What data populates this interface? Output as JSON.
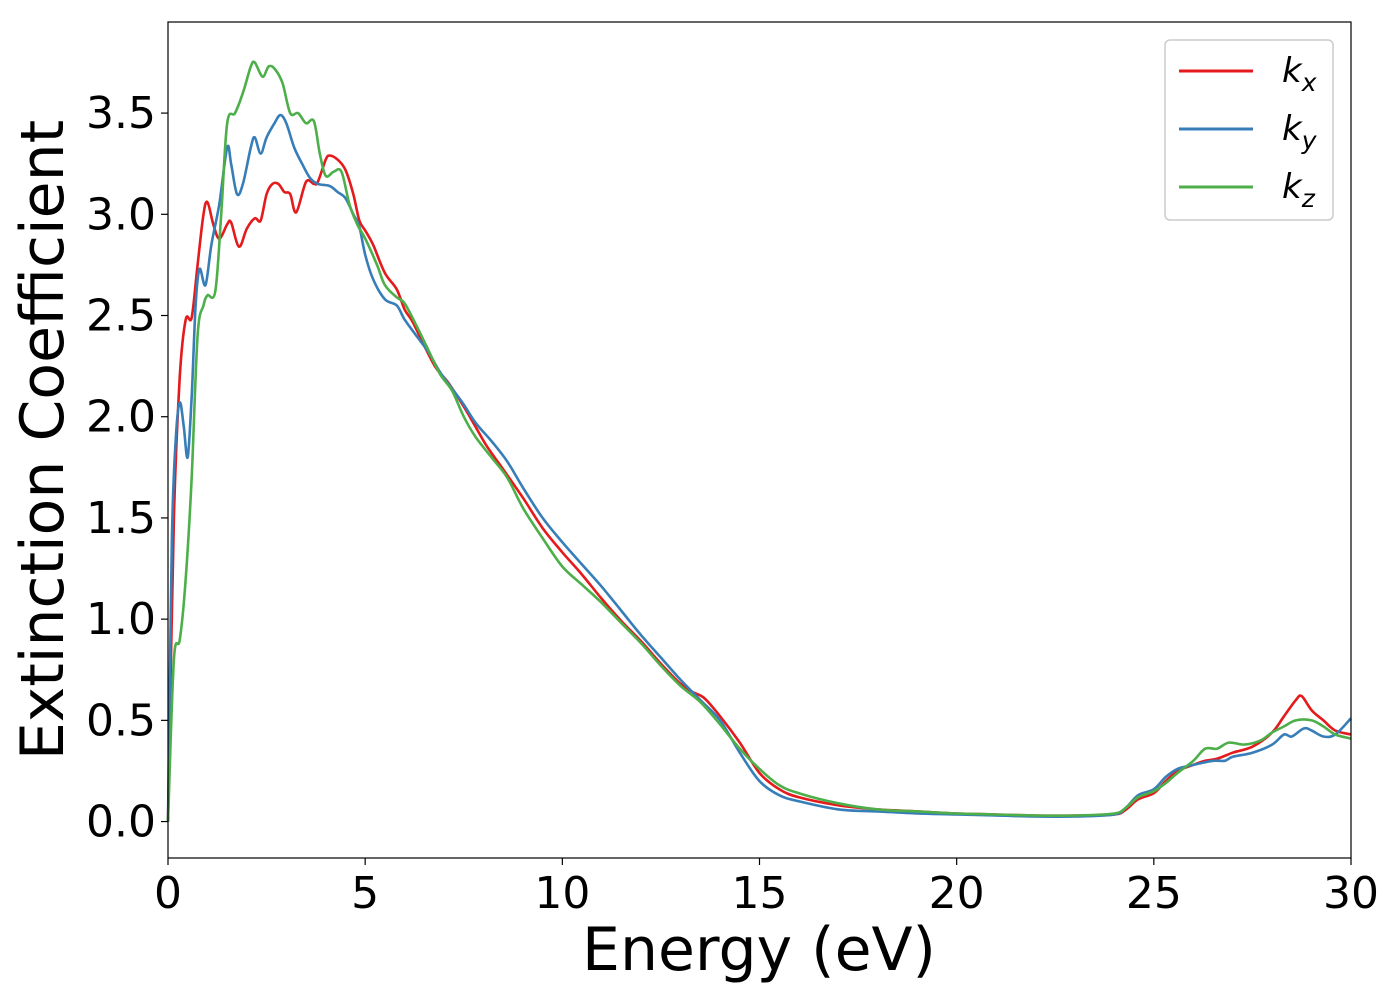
{
  "chart_data": {
    "type": "line",
    "xlabel": "Energy (eV)",
    "ylabel": "Extinction Coefficient",
    "xlim": [
      0,
      30
    ],
    "ylim": [
      -0.18,
      3.95
    ],
    "xticks": [
      0,
      5,
      10,
      15,
      20,
      25,
      30
    ],
    "xtick_labels": [
      "0",
      "5",
      "10",
      "15",
      "20",
      "25",
      "30"
    ],
    "yticks": [
      0.0,
      0.5,
      1.0,
      1.5,
      2.0,
      2.5,
      3.0,
      3.5
    ],
    "ytick_labels": [
      "0.0",
      "0.5",
      "1.0",
      "1.5",
      "2.0",
      "2.5",
      "3.0",
      "3.5"
    ],
    "grid": false,
    "legend_position": "top-right",
    "series": [
      {
        "name": "k",
        "subscript": "x",
        "color": "#e41a1c",
        "points": [
          [
            0,
            0.0
          ],
          [
            0.15,
            1.5
          ],
          [
            0.3,
            2.2
          ],
          [
            0.45,
            2.48
          ],
          [
            0.6,
            2.49
          ],
          [
            0.75,
            2.75
          ],
          [
            0.9,
            3.0
          ],
          [
            1.0,
            3.06
          ],
          [
            1.15,
            2.95
          ],
          [
            1.3,
            2.88
          ],
          [
            1.5,
            2.95
          ],
          [
            1.6,
            2.96
          ],
          [
            1.8,
            2.84
          ],
          [
            2.0,
            2.93
          ],
          [
            2.2,
            2.98
          ],
          [
            2.35,
            2.97
          ],
          [
            2.5,
            3.1
          ],
          [
            2.65,
            3.15
          ],
          [
            2.8,
            3.15
          ],
          [
            2.95,
            3.11
          ],
          [
            3.1,
            3.1
          ],
          [
            3.25,
            3.01
          ],
          [
            3.5,
            3.16
          ],
          [
            3.7,
            3.15
          ],
          [
            3.8,
            3.16
          ],
          [
            4.0,
            3.27
          ],
          [
            4.1,
            3.29
          ],
          [
            4.3,
            3.27
          ],
          [
            4.5,
            3.22
          ],
          [
            4.7,
            3.1
          ],
          [
            4.85,
            2.97
          ],
          [
            5.0,
            2.92
          ],
          [
            5.2,
            2.85
          ],
          [
            5.5,
            2.71
          ],
          [
            5.8,
            2.63
          ],
          [
            6.0,
            2.53
          ],
          [
            6.2,
            2.47
          ],
          [
            6.5,
            2.35
          ],
          [
            6.8,
            2.24
          ],
          [
            7.1,
            2.17
          ],
          [
            7.5,
            2.05
          ],
          [
            7.8,
            1.95
          ],
          [
            8.1,
            1.85
          ],
          [
            8.5,
            1.74
          ],
          [
            9.0,
            1.6
          ],
          [
            9.5,
            1.45
          ],
          [
            10.0,
            1.33
          ],
          [
            10.5,
            1.22
          ],
          [
            11.0,
            1.1
          ],
          [
            11.5,
            0.99
          ],
          [
            12.0,
            0.89
          ],
          [
            12.5,
            0.78
          ],
          [
            13.0,
            0.68
          ],
          [
            13.3,
            0.64
          ],
          [
            13.6,
            0.61
          ],
          [
            14.0,
            0.52
          ],
          [
            14.5,
            0.39
          ],
          [
            15.0,
            0.24
          ],
          [
            15.5,
            0.16
          ],
          [
            16.0,
            0.12
          ],
          [
            17.0,
            0.08
          ],
          [
            18.0,
            0.06
          ],
          [
            19.0,
            0.05
          ],
          [
            20.0,
            0.04
          ],
          [
            21.0,
            0.035
          ],
          [
            22.0,
            0.03
          ],
          [
            23.0,
            0.03
          ],
          [
            24.0,
            0.035
          ],
          [
            24.3,
            0.06
          ],
          [
            24.6,
            0.11
          ],
          [
            25.0,
            0.14
          ],
          [
            25.3,
            0.2
          ],
          [
            25.6,
            0.25
          ],
          [
            26.0,
            0.28
          ],
          [
            26.3,
            0.3
          ],
          [
            26.6,
            0.31
          ],
          [
            27.0,
            0.34
          ],
          [
            27.5,
            0.37
          ],
          [
            28.0,
            0.44
          ],
          [
            28.3,
            0.52
          ],
          [
            28.6,
            0.6
          ],
          [
            28.75,
            0.62
          ],
          [
            29.0,
            0.55
          ],
          [
            29.3,
            0.5
          ],
          [
            29.6,
            0.45
          ],
          [
            30.0,
            0.43
          ]
        ]
      },
      {
        "name": "k",
        "subscript": "y",
        "color": "#377eb8",
        "points": [
          [
            0,
            0.0
          ],
          [
            0.1,
            1.4
          ],
          [
            0.2,
            1.9
          ],
          [
            0.3,
            2.07
          ],
          [
            0.4,
            1.95
          ],
          [
            0.5,
            1.8
          ],
          [
            0.6,
            2.1
          ],
          [
            0.7,
            2.55
          ],
          [
            0.8,
            2.73
          ],
          [
            0.95,
            2.65
          ],
          [
            1.1,
            2.85
          ],
          [
            1.3,
            3.05
          ],
          [
            1.5,
            3.33
          ],
          [
            1.6,
            3.25
          ],
          [
            1.75,
            3.1
          ],
          [
            1.9,
            3.15
          ],
          [
            2.1,
            3.33
          ],
          [
            2.2,
            3.38
          ],
          [
            2.35,
            3.3
          ],
          [
            2.5,
            3.38
          ],
          [
            2.7,
            3.45
          ],
          [
            2.85,
            3.49
          ],
          [
            3.0,
            3.45
          ],
          [
            3.2,
            3.33
          ],
          [
            3.4,
            3.25
          ],
          [
            3.6,
            3.18
          ],
          [
            3.8,
            3.15
          ],
          [
            4.1,
            3.14
          ],
          [
            4.3,
            3.11
          ],
          [
            4.5,
            3.08
          ],
          [
            4.7,
            3.0
          ],
          [
            4.85,
            2.94
          ],
          [
            5.0,
            2.8
          ],
          [
            5.2,
            2.68
          ],
          [
            5.5,
            2.58
          ],
          [
            5.8,
            2.55
          ],
          [
            6.0,
            2.48
          ],
          [
            6.3,
            2.4
          ],
          [
            6.6,
            2.32
          ],
          [
            6.9,
            2.22
          ],
          [
            7.2,
            2.14
          ],
          [
            7.5,
            2.06
          ],
          [
            7.8,
            1.97
          ],
          [
            8.2,
            1.88
          ],
          [
            8.6,
            1.78
          ],
          [
            9.0,
            1.65
          ],
          [
            9.5,
            1.5
          ],
          [
            10.0,
            1.38
          ],
          [
            10.5,
            1.27
          ],
          [
            11.0,
            1.16
          ],
          [
            11.5,
            1.04
          ],
          [
            12.0,
            0.92
          ],
          [
            12.5,
            0.81
          ],
          [
            13.0,
            0.7
          ],
          [
            13.5,
            0.6
          ],
          [
            14.0,
            0.5
          ],
          [
            14.5,
            0.34
          ],
          [
            15.0,
            0.2
          ],
          [
            15.5,
            0.13
          ],
          [
            16.0,
            0.1
          ],
          [
            17.0,
            0.06
          ],
          [
            18.0,
            0.05
          ],
          [
            19.0,
            0.04
          ],
          [
            20.0,
            0.035
          ],
          [
            21.0,
            0.03
          ],
          [
            22.0,
            0.025
          ],
          [
            23.0,
            0.025
          ],
          [
            24.0,
            0.035
          ],
          [
            24.3,
            0.07
          ],
          [
            24.6,
            0.13
          ],
          [
            25.0,
            0.16
          ],
          [
            25.3,
            0.22
          ],
          [
            25.6,
            0.26
          ],
          [
            26.0,
            0.28
          ],
          [
            26.5,
            0.3
          ],
          [
            26.8,
            0.3
          ],
          [
            27.0,
            0.32
          ],
          [
            27.5,
            0.34
          ],
          [
            28.0,
            0.38
          ],
          [
            28.3,
            0.43
          ],
          [
            28.5,
            0.42
          ],
          [
            28.8,
            0.46
          ],
          [
            29.0,
            0.45
          ],
          [
            29.3,
            0.42
          ],
          [
            29.6,
            0.43
          ],
          [
            30.0,
            0.51
          ]
        ]
      },
      {
        "name": "k",
        "subscript": "z",
        "color": "#4daf4a",
        "points": [
          [
            0,
            0.0
          ],
          [
            0.15,
            0.8
          ],
          [
            0.3,
            0.9
          ],
          [
            0.45,
            1.2
          ],
          [
            0.6,
            1.7
          ],
          [
            0.75,
            2.4
          ],
          [
            0.9,
            2.55
          ],
          [
            1.0,
            2.6
          ],
          [
            1.2,
            2.62
          ],
          [
            1.35,
            3.0
          ],
          [
            1.5,
            3.45
          ],
          [
            1.7,
            3.5
          ],
          [
            1.9,
            3.6
          ],
          [
            2.1,
            3.73
          ],
          [
            2.2,
            3.75
          ],
          [
            2.4,
            3.68
          ],
          [
            2.55,
            3.73
          ],
          [
            2.7,
            3.72
          ],
          [
            2.9,
            3.65
          ],
          [
            3.1,
            3.5
          ],
          [
            3.3,
            3.5
          ],
          [
            3.5,
            3.45
          ],
          [
            3.7,
            3.46
          ],
          [
            3.85,
            3.3
          ],
          [
            4.0,
            3.19
          ],
          [
            4.2,
            3.21
          ],
          [
            4.4,
            3.21
          ],
          [
            4.6,
            3.05
          ],
          [
            4.8,
            2.95
          ],
          [
            5.0,
            2.88
          ],
          [
            5.3,
            2.75
          ],
          [
            5.5,
            2.65
          ],
          [
            5.8,
            2.59
          ],
          [
            6.0,
            2.56
          ],
          [
            6.3,
            2.45
          ],
          [
            6.6,
            2.33
          ],
          [
            6.9,
            2.21
          ],
          [
            7.2,
            2.13
          ],
          [
            7.5,
            2.0
          ],
          [
            7.8,
            1.9
          ],
          [
            8.2,
            1.8
          ],
          [
            8.6,
            1.7
          ],
          [
            9.0,
            1.55
          ],
          [
            9.5,
            1.4
          ],
          [
            10.0,
            1.26
          ],
          [
            10.5,
            1.17
          ],
          [
            11.0,
            1.08
          ],
          [
            11.5,
            0.98
          ],
          [
            12.0,
            0.88
          ],
          [
            12.5,
            0.77
          ],
          [
            13.0,
            0.67
          ],
          [
            13.5,
            0.59
          ],
          [
            14.0,
            0.48
          ],
          [
            14.5,
            0.36
          ],
          [
            15.0,
            0.26
          ],
          [
            15.5,
            0.18
          ],
          [
            16.0,
            0.14
          ],
          [
            17.0,
            0.09
          ],
          [
            18.0,
            0.06
          ],
          [
            19.0,
            0.05
          ],
          [
            20.0,
            0.04
          ],
          [
            21.0,
            0.035
          ],
          [
            22.0,
            0.03
          ],
          [
            23.0,
            0.03
          ],
          [
            24.0,
            0.04
          ],
          [
            24.3,
            0.07
          ],
          [
            24.6,
            0.12
          ],
          [
            25.0,
            0.15
          ],
          [
            25.3,
            0.19
          ],
          [
            25.6,
            0.24
          ],
          [
            26.0,
            0.3
          ],
          [
            26.3,
            0.36
          ],
          [
            26.6,
            0.36
          ],
          [
            26.9,
            0.39
          ],
          [
            27.3,
            0.38
          ],
          [
            27.7,
            0.4
          ],
          [
            28.0,
            0.44
          ],
          [
            28.3,
            0.47
          ],
          [
            28.6,
            0.5
          ],
          [
            29.0,
            0.5
          ],
          [
            29.3,
            0.47
          ],
          [
            29.6,
            0.43
          ],
          [
            30.0,
            0.41
          ]
        ]
      }
    ]
  }
}
